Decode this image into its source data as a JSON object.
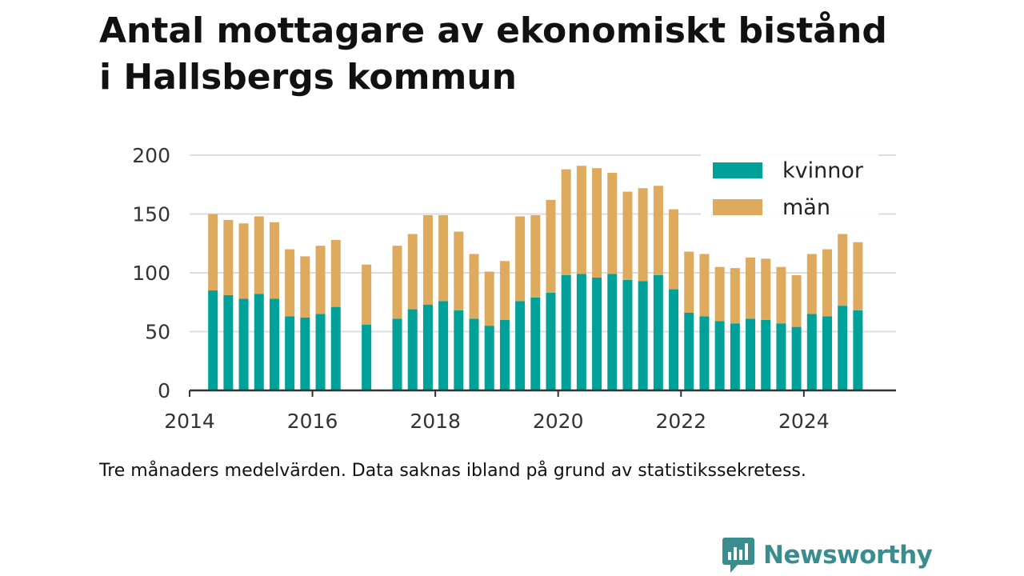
{
  "title_line1": "Antal mottagare av ekonomiskt bistånd",
  "title_line2": "i Hallsbergs kommun",
  "note": "Tre månaders medelvärden. Data saknas ibland på grund av statistikssekretess.",
  "brand": {
    "name": "Newsworthy",
    "color": "#3a8d8f",
    "icon": "bar-chart-speech-icon"
  },
  "chart_data": {
    "type": "bar",
    "stacked": true,
    "x_unit": "year",
    "ylim": [
      0,
      200
    ],
    "xlim": [
      2014,
      2025.5
    ],
    "yticks": [
      0,
      50,
      100,
      150,
      200
    ],
    "xticks": [
      2014,
      2016,
      2018,
      2020,
      2022,
      2024
    ],
    "grid": true,
    "legend_position": "top-right",
    "x": [
      2014.38,
      2014.63,
      2014.88,
      2015.13,
      2015.38,
      2015.63,
      2015.88,
      2016.13,
      2016.38,
      2016.88,
      2017.38,
      2017.63,
      2017.88,
      2018.13,
      2018.38,
      2018.63,
      2018.88,
      2019.13,
      2019.38,
      2019.63,
      2019.88,
      2020.13,
      2020.38,
      2020.63,
      2020.88,
      2021.13,
      2021.38,
      2021.63,
      2021.88,
      2022.13,
      2022.38,
      2022.63,
      2022.88,
      2023.13,
      2023.38,
      2023.63,
      2023.88,
      2024.13,
      2024.38,
      2024.63,
      2024.88
    ],
    "series": [
      {
        "name": "kvinnor",
        "color": "#00a198",
        "values": [
          85,
          81,
          78,
          82,
          78,
          63,
          62,
          65,
          71,
          56,
          61,
          69,
          73,
          76,
          68,
          61,
          55,
          60,
          76,
          79,
          83,
          98,
          99,
          96,
          99,
          94,
          93,
          98,
          86,
          66,
          63,
          59,
          57,
          61,
          60,
          57,
          54,
          65,
          63,
          72,
          68
        ]
      },
      {
        "name": "män",
        "color": "#deab5e",
        "values": [
          65,
          64,
          64,
          66,
          65,
          57,
          52,
          58,
          57,
          51,
          62,
          64,
          76,
          73,
          67,
          55,
          46,
          50,
          72,
          70,
          79,
          90,
          92,
          93,
          86,
          75,
          79,
          76,
          68,
          52,
          53,
          46,
          47,
          52,
          52,
          48,
          44,
          51,
          57,
          61,
          58
        ]
      }
    ]
  }
}
